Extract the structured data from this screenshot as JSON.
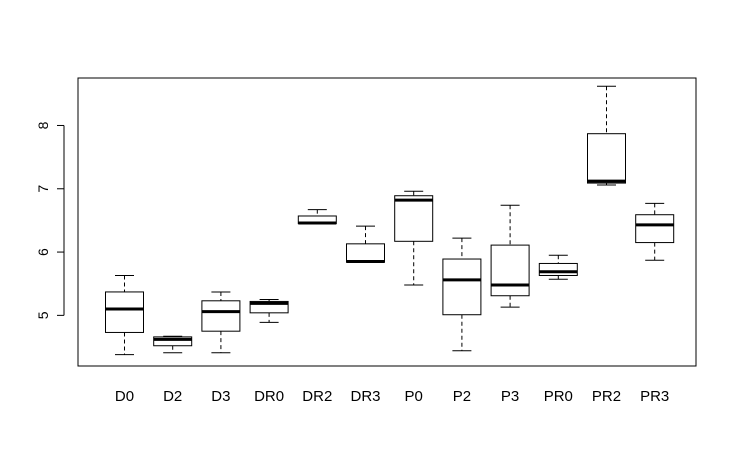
{
  "chart_data": {
    "type": "boxplot",
    "title": "",
    "xlabel": "",
    "ylabel": "",
    "ylim": [
      4.2,
      8.75
    ],
    "yticks": [
      5,
      6,
      7,
      8
    ],
    "categories": [
      "D0",
      "D2",
      "D3",
      "DR0",
      "DR2",
      "DR3",
      "P0",
      "P2",
      "P3",
      "PR0",
      "PR2",
      "PR3"
    ],
    "boxes": [
      {
        "label": "D0",
        "min": 4.38,
        "q1": 4.73,
        "median": 5.1,
        "q3": 5.37,
        "max": 5.63
      },
      {
        "label": "D2",
        "min": 4.41,
        "q1": 4.52,
        "median": 4.62,
        "q3": 4.66,
        "max": 4.67
      },
      {
        "label": "D3",
        "min": 4.41,
        "q1": 4.75,
        "median": 5.06,
        "q3": 5.23,
        "max": 5.37
      },
      {
        "label": "DR0",
        "min": 4.89,
        "q1": 5.04,
        "median": 5.19,
        "q3": 5.22,
        "max": 5.25
      },
      {
        "label": "DR2",
        "min": 6.45,
        "q1": 6.45,
        "median": 6.46,
        "q3": 6.57,
        "max": 6.67
      },
      {
        "label": "DR3",
        "min": 5.84,
        "q1": 5.84,
        "median": 5.85,
        "q3": 6.13,
        "max": 6.41
      },
      {
        "label": "P0",
        "min": 5.48,
        "q1": 6.17,
        "median": 6.82,
        "q3": 6.89,
        "max": 6.96
      },
      {
        "label": "P2",
        "min": 4.44,
        "q1": 5.01,
        "median": 5.56,
        "q3": 5.89,
        "max": 6.22
      },
      {
        "label": "P3",
        "min": 5.13,
        "q1": 5.31,
        "median": 5.48,
        "q3": 6.11,
        "max": 6.74
      },
      {
        "label": "PR0",
        "min": 5.57,
        "q1": 5.63,
        "median": 5.69,
        "q3": 5.82,
        "max": 5.95
      },
      {
        "label": "PR2",
        "min": 7.06,
        "q1": 7.09,
        "median": 7.12,
        "q3": 7.87,
        "max": 8.62
      },
      {
        "label": "PR3",
        "min": 5.87,
        "q1": 6.15,
        "median": 6.43,
        "q3": 6.59,
        "max": 6.77
      }
    ]
  }
}
